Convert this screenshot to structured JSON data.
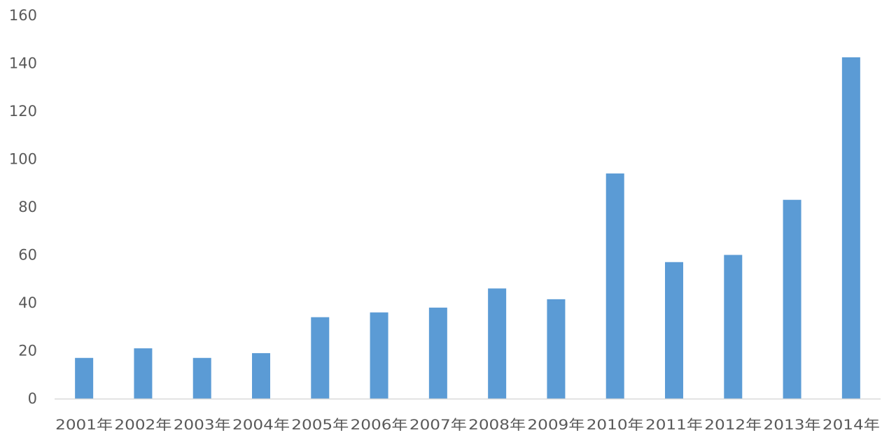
{
  "colors": {
    "bar": "#5b9bd5",
    "axis": "#d9d9d9",
    "text": "#595959"
  },
  "chart_data": {
    "type": "bar",
    "title": "",
    "xlabel": "",
    "ylabel": "",
    "categories": [
      "2001年",
      "2002年",
      "2003年",
      "2004年",
      "2005年",
      "2006年",
      "2007年",
      "2008年",
      "2009年",
      "2010年",
      "2011年",
      "2012年",
      "2013年",
      "2014年"
    ],
    "values": [
      17,
      21,
      17,
      19,
      34,
      36,
      38,
      46,
      41.5,
      94,
      57,
      60,
      83,
      142.5
    ],
    "ylim": [
      0,
      160
    ],
    "yticks": [
      0,
      20,
      40,
      60,
      80,
      100,
      120,
      140,
      160
    ],
    "grid": false,
    "legend": "none"
  }
}
